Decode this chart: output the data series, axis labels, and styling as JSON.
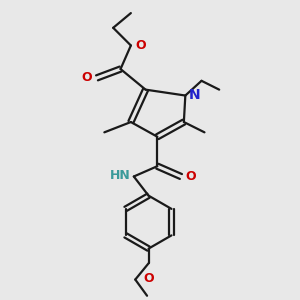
{
  "bg_color": "#e8e8e8",
  "bond_color": "#1a1a1a",
  "N_color": "#2222cc",
  "O_color": "#cc0000",
  "NH_color": "#3a9a9a",
  "line_width": 1.6,
  "font_size": 8.5,
  "figsize": [
    3.0,
    3.0
  ],
  "dpi": 100,
  "xlim": [
    0,
    10
  ],
  "ylim": [
    0,
    10
  ]
}
